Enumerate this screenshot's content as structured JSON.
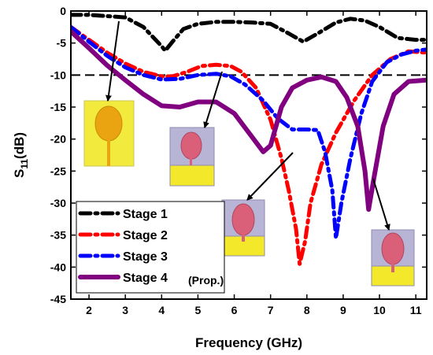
{
  "chart_data": {
    "type": "line",
    "xlabel": "Frequency (GHz)",
    "ylabel_main": "S",
    "ylabel_sub": "11",
    "ylabel_unit": "(dB)",
    "xlim": [
      1.5,
      11.3
    ],
    "ylim": [
      -45,
      0
    ],
    "xticks": [
      2,
      3,
      4,
      5,
      6,
      7,
      8,
      9,
      10,
      11
    ],
    "yticks": [
      0,
      -5,
      -10,
      -15,
      -20,
      -25,
      -30,
      -35,
      -40,
      -45
    ],
    "reference_line": {
      "y": -10,
      "style": "dashed",
      "color": "#000000"
    },
    "legend_position": "bottom-left",
    "legend_note": "(Prop.)",
    "series": [
      {
        "name": "Stage 1",
        "color": "#000000",
        "style": "dash-dot",
        "points": [
          [
            1.5,
            -0.6
          ],
          [
            2,
            -0.6
          ],
          [
            2.5,
            -0.8
          ],
          [
            3,
            -1
          ],
          [
            3.5,
            -2.5
          ],
          [
            4,
            -5.5
          ],
          [
            4.1,
            -6.2
          ],
          [
            4.3,
            -4.8
          ],
          [
            4.6,
            -2.8
          ],
          [
            5,
            -2
          ],
          [
            5.5,
            -1.7
          ],
          [
            6,
            -1.7
          ],
          [
            6.5,
            -1.8
          ],
          [
            7,
            -2
          ],
          [
            7.5,
            -3.5
          ],
          [
            7.9,
            -4.8
          ],
          [
            8.3,
            -3.5
          ],
          [
            8.8,
            -1.8
          ],
          [
            9.2,
            -1.2
          ],
          [
            9.6,
            -1.5
          ],
          [
            10,
            -2.5
          ],
          [
            10.5,
            -4.2
          ],
          [
            11,
            -4.5
          ],
          [
            11.3,
            -4.5
          ]
        ]
      },
      {
        "name": "Stage 2",
        "color": "#ff0000",
        "style": "dash-dot",
        "points": [
          [
            1.5,
            -2.5
          ],
          [
            2,
            -4.5
          ],
          [
            2.5,
            -6.5
          ],
          [
            3,
            -8.2
          ],
          [
            3.5,
            -9.5
          ],
          [
            4,
            -10.2
          ],
          [
            4.3,
            -10.2
          ],
          [
            4.7,
            -9.5
          ],
          [
            5.1,
            -8.6
          ],
          [
            5.5,
            -8.4
          ],
          [
            5.9,
            -8.6
          ],
          [
            6.2,
            -9.5
          ],
          [
            6.6,
            -12
          ],
          [
            7,
            -17
          ],
          [
            7.3,
            -23
          ],
          [
            7.5,
            -28
          ],
          [
            7.7,
            -34
          ],
          [
            7.8,
            -39.5
          ],
          [
            7.95,
            -36
          ],
          [
            8.1,
            -30
          ],
          [
            8.4,
            -24
          ],
          [
            8.8,
            -19
          ],
          [
            9.3,
            -14
          ],
          [
            9.8,
            -10
          ],
          [
            10.3,
            -7.5
          ],
          [
            10.8,
            -6.3
          ],
          [
            11.3,
            -6.5
          ]
        ]
      },
      {
        "name": "Stage 3",
        "color": "#0000ff",
        "style": "dash-dot",
        "points": [
          [
            1.5,
            -2.5
          ],
          [
            2,
            -4.8
          ],
          [
            2.5,
            -7
          ],
          [
            3,
            -8.8
          ],
          [
            3.5,
            -10
          ],
          [
            4,
            -10.7
          ],
          [
            4.5,
            -10.6
          ],
          [
            5,
            -10
          ],
          [
            5.5,
            -9.8
          ],
          [
            5.9,
            -10.2
          ],
          [
            6.3,
            -11.5
          ],
          [
            6.8,
            -14
          ],
          [
            7.2,
            -16.8
          ],
          [
            7.6,
            -18.5
          ],
          [
            8,
            -18.5
          ],
          [
            8.3,
            -18.6
          ],
          [
            8.5,
            -22
          ],
          [
            8.7,
            -28
          ],
          [
            8.8,
            -35.5
          ],
          [
            8.95,
            -30
          ],
          [
            9.2,
            -23
          ],
          [
            9.5,
            -16
          ],
          [
            9.8,
            -11
          ],
          [
            10.2,
            -8
          ],
          [
            10.6,
            -6.8
          ],
          [
            11,
            -6.2
          ],
          [
            11.3,
            -6
          ]
        ]
      },
      {
        "name": "Stage 4",
        "color": "#800080",
        "style": "solid",
        "points": [
          [
            1.5,
            -3.2
          ],
          [
            2,
            -5.8
          ],
          [
            2.5,
            -8.5
          ],
          [
            3,
            -10.8
          ],
          [
            3.5,
            -13
          ],
          [
            4,
            -14.8
          ],
          [
            4.5,
            -15
          ],
          [
            5,
            -14.2
          ],
          [
            5.5,
            -14.2
          ],
          [
            6,
            -16
          ],
          [
            6.4,
            -19
          ],
          [
            6.8,
            -22
          ],
          [
            7,
            -21
          ],
          [
            7.3,
            -15
          ],
          [
            7.6,
            -12
          ],
          [
            8,
            -10.8
          ],
          [
            8.4,
            -10.3
          ],
          [
            8.8,
            -11
          ],
          [
            9.1,
            -13.5
          ],
          [
            9.4,
            -18
          ],
          [
            9.6,
            -25
          ],
          [
            9.7,
            -31
          ],
          [
            9.85,
            -26
          ],
          [
            10.1,
            -18
          ],
          [
            10.4,
            -13
          ],
          [
            10.8,
            -11
          ],
          [
            11.3,
            -10.8
          ]
        ]
      }
    ]
  }
}
